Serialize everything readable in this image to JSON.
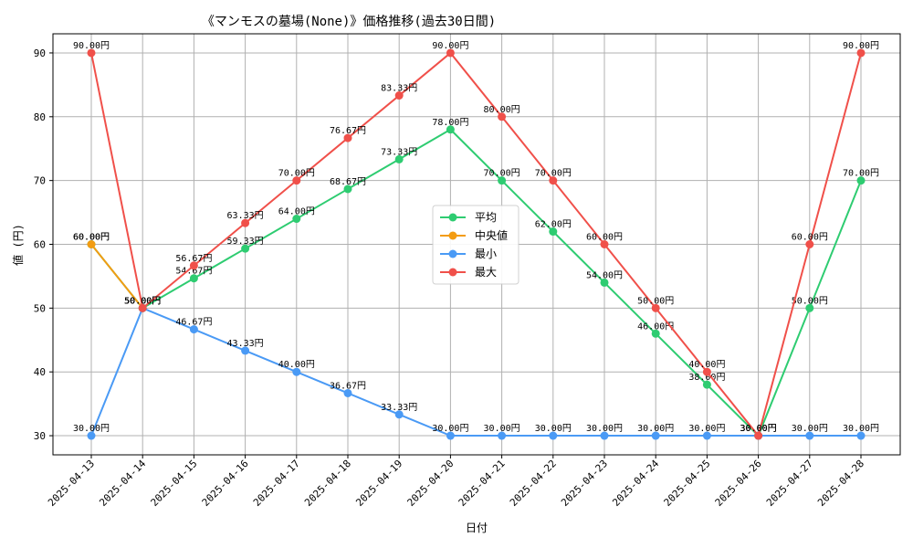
{
  "chart_data": {
    "type": "line",
    "title": "《マンモスの墓場(None)》価格推移(過去30日間)",
    "xlabel": "日付",
    "ylabel": "値 (円)",
    "ylim": [
      27,
      93
    ],
    "yticks": [
      30,
      40,
      50,
      60,
      70,
      80,
      90
    ],
    "grid": true,
    "legend_position": "center",
    "value_suffix": "円",
    "categories": [
      "2025-04-13",
      "2025-04-14",
      "2025-04-15",
      "2025-04-16",
      "2025-04-17",
      "2025-04-18",
      "2025-04-19",
      "2025-04-20",
      "2025-04-21",
      "2025-04-22",
      "2025-04-23",
      "2025-04-24",
      "2025-04-25",
      "2025-04-26",
      "2025-04-27",
      "2025-04-28"
    ],
    "series": [
      {
        "name": "平均",
        "color": "#2ecc71",
        "values": [
          60.0,
          50.0,
          54.67,
          59.33,
          64.0,
          68.67,
          73.33,
          78.0,
          70.0,
          62.0,
          54.0,
          46.0,
          38.0,
          30.0,
          50.0,
          70.0
        ]
      },
      {
        "name": "中央値",
        "color": "#f39c12",
        "values": [
          60.0,
          50.0,
          null,
          null,
          null,
          null,
          null,
          null,
          null,
          null,
          null,
          null,
          null,
          null,
          null,
          null
        ]
      },
      {
        "name": "最小",
        "color": "#4a9af5",
        "values": [
          30.0,
          50.0,
          46.67,
          43.33,
          40.0,
          36.67,
          33.33,
          30.0,
          30.0,
          30.0,
          30.0,
          30.0,
          30.0,
          30.0,
          30.0,
          30.0
        ]
      },
      {
        "name": "最大",
        "color": "#f0504a",
        "values": [
          90.0,
          50.0,
          56.67,
          63.33,
          70.0,
          76.67,
          83.33,
          90.0,
          80.0,
          70.0,
          60.0,
          50.0,
          40.0,
          30.0,
          60.0,
          90.0
        ]
      }
    ]
  }
}
